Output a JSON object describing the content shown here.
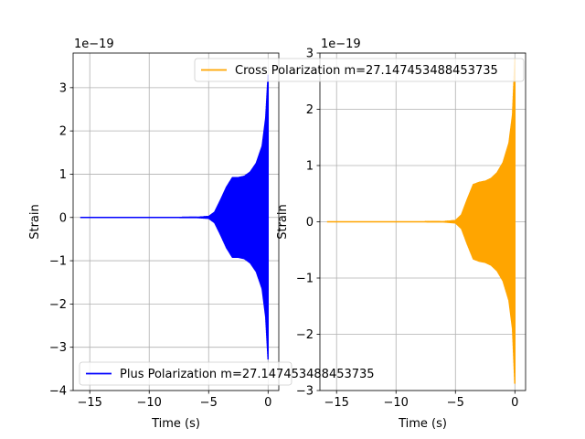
{
  "chart_data": [
    {
      "type": "line",
      "xlabel": "Time (s)",
      "ylabel": "Strain",
      "offset_text": "1e−19",
      "xlim": [
        -16.4,
        0.9
      ],
      "ylim": [
        -4e-19,
        3.8e-19
      ],
      "xticks": [
        -15,
        -10,
        -5,
        0
      ],
      "xtick_labels": [
        "−15",
        "−10",
        "−5",
        "0"
      ],
      "yticks": [
        -4e-19,
        -3e-19,
        -2e-19,
        -1e-19,
        0,
        1e-19,
        2e-19,
        3e-19
      ],
      "ytick_labels": [
        "−4",
        "−3",
        "−2",
        "−1",
        "0",
        "1",
        "2",
        "3"
      ],
      "grid": true,
      "legend_position": "lower-left",
      "series": [
        {
          "name": "Plus Polarization m=27.147453488453735",
          "color": "#0000ff",
          "envelope": {
            "t": [
              -15.8,
              -8.0,
              -6.0,
              -5.0,
              -4.5,
              -4.0,
              -3.5,
              -3.0,
              -2.5,
              -2.0,
              -1.5,
              -1.0,
              -0.5,
              -0.2,
              0.0
            ],
            "amp": [
              0.0,
              0.0,
              2e-22,
              2e-21,
              1.2e-20,
              4e-20,
              7e-20,
              9.2e-20,
              9.2e-20,
              9.5e-20,
              1.05e-19,
              1.25e-19,
              1.65e-19,
              2.3e-19,
              3.3e-19
            ]
          }
        }
      ]
    },
    {
      "type": "line",
      "xlabel": "Time (s)",
      "ylabel": "Strain",
      "offset_text": "1e−19",
      "xlim": [
        -16.4,
        0.9
      ],
      "ylim": [
        -3e-19,
        3e-19
      ],
      "xticks": [
        -15,
        -10,
        -5,
        0
      ],
      "xtick_labels": [
        "−15",
        "−10",
        "−5",
        "0"
      ],
      "yticks": [
        -3e-19,
        -2e-19,
        -1e-19,
        0,
        1e-19,
        2e-19,
        3e-19
      ],
      "ytick_labels": [
        "−3",
        "−2",
        "−1",
        "0",
        "1",
        "2",
        "3"
      ],
      "grid": true,
      "legend_position": "upper-right",
      "series": [
        {
          "name": "Cross Polarization m=27.147453488453735",
          "color": "#ffa500",
          "envelope": {
            "t": [
              -15.8,
              -8.0,
              -6.0,
              -5.0,
              -4.5,
              -4.0,
              -3.5,
              -3.0,
              -2.5,
              -2.0,
              -1.5,
              -1.0,
              -0.5,
              -0.2,
              0.0
            ],
            "amp": [
              0.0,
              0.0,
              2e-22,
              2e-21,
              1.2e-20,
              4e-20,
              6.6e-20,
              7e-20,
              7.2e-20,
              7.7e-20,
              8.7e-20,
              1.05e-19,
              1.4e-19,
              1.9e-19,
              2.9e-19
            ]
          }
        }
      ]
    }
  ]
}
